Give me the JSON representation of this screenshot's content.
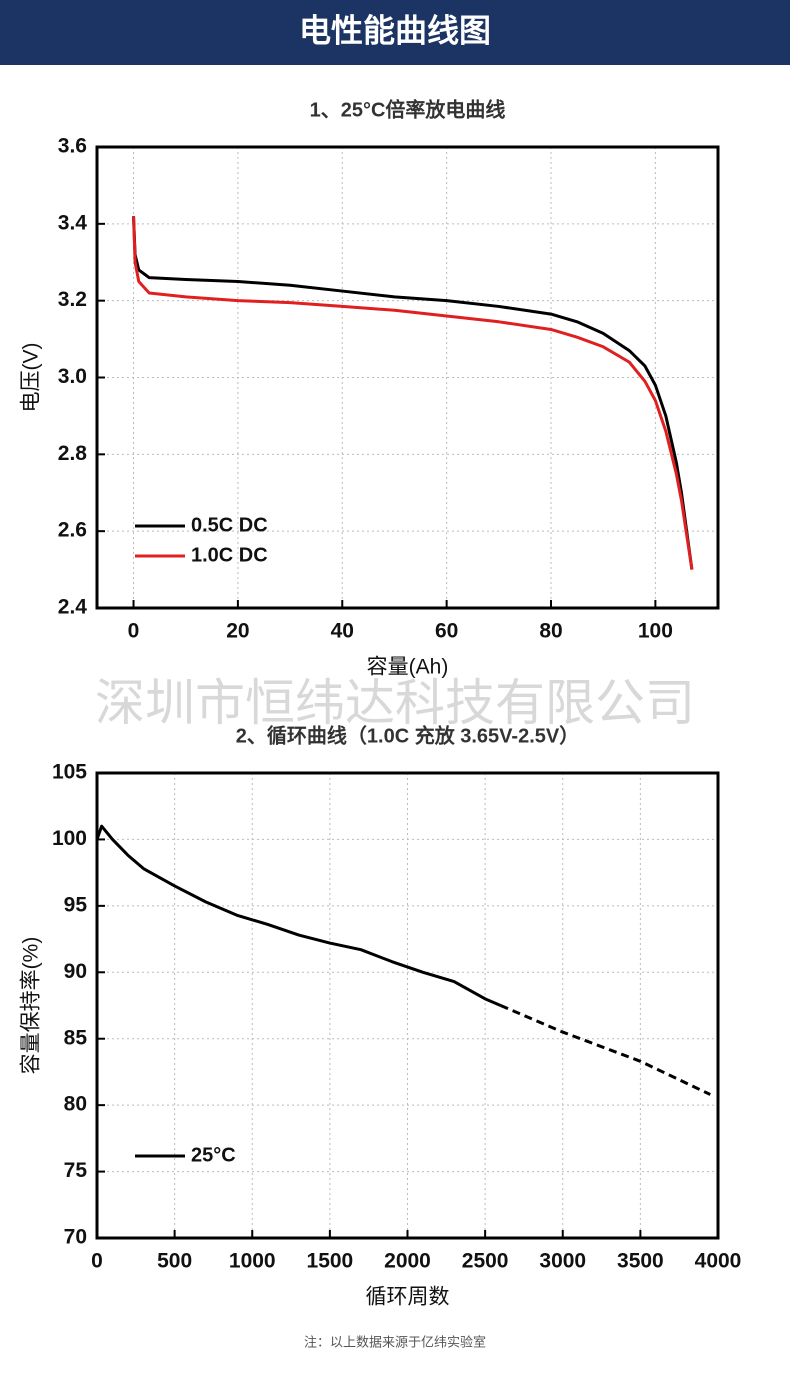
{
  "header": {
    "title": "电性能曲线图"
  },
  "watermark": "深圳市恒纬达科技有限公司",
  "note": "注：以上数据来源于亿纬实验室",
  "chart_data": [
    {
      "type": "line",
      "title": "1、25°C倍率放电曲线",
      "x_label": "容量(Ah)",
      "y_label": "电压(V)",
      "xlim": [
        -7,
        112
      ],
      "ylim": [
        2.4,
        3.6
      ],
      "xticks": [
        0,
        20,
        40,
        60,
        80,
        100
      ],
      "yticks": [
        2.4,
        2.6,
        2.8,
        {
          "value": 3,
          "label": "3.0"
        },
        3.2,
        3.4,
        3.6
      ],
      "grid": true,
      "legend": "lower left",
      "x": [
        0,
        0.3,
        1,
        3,
        10,
        20,
        30,
        40,
        50,
        60,
        70,
        80,
        85,
        90,
        95,
        98,
        100,
        102,
        104,
        105,
        106,
        107
      ],
      "series": [
        {
          "name": "0.5C DC",
          "color": "#000000",
          "values": [
            3.42,
            3.32,
            3.28,
            3.26,
            3.255,
            3.25,
            3.24,
            3.225,
            3.21,
            3.2,
            3.185,
            3.165,
            3.145,
            3.115,
            3.07,
            3.03,
            2.98,
            2.9,
            2.78,
            2.7,
            2.6,
            2.5
          ]
        },
        {
          "name": "1.0C DC",
          "color": "#e02020",
          "values": [
            3.42,
            3.3,
            3.25,
            3.22,
            3.21,
            3.2,
            3.195,
            3.185,
            3.175,
            3.16,
            3.145,
            3.125,
            3.105,
            3.08,
            3.04,
            2.99,
            2.94,
            2.86,
            2.75,
            2.68,
            2.59,
            2.5
          ]
        }
      ]
    },
    {
      "type": "line",
      "title": "2、循环曲线（1.0C 充放 3.65V-2.5V）",
      "x_label": "循环周数",
      "y_label": "容量保持率(%)",
      "xlim": [
        0,
        4000
      ],
      "ylim": [
        70,
        105
      ],
      "xticks": [
        0,
        500,
        1000,
        1500,
        2000,
        2500,
        3000,
        3500,
        4000
      ],
      "yticks": [
        70,
        75,
        80,
        85,
        90,
        95,
        100,
        105
      ],
      "grid": true,
      "legend": "lower left",
      "series": [
        {
          "name": "25°C",
          "color": "#000000",
          "x": [
            0,
            30,
            100,
            200,
            300,
            500,
            700,
            900,
            1100,
            1300,
            1500,
            1700,
            1900,
            2100,
            2300,
            2500,
            2600
          ],
          "values": [
            100,
            101,
            100,
            98.8,
            97.8,
            96.5,
            95.3,
            94.3,
            93.6,
            92.8,
            92.2,
            91.7,
            90.8,
            90,
            89.3,
            88,
            87.5
          ]
        },
        {
          "color": "#000000",
          "dashed": true,
          "x": [
            2600,
            3000,
            3500,
            3950
          ],
          "values": [
            87.5,
            85.5,
            83.3,
            80.8
          ]
        }
      ]
    }
  ]
}
